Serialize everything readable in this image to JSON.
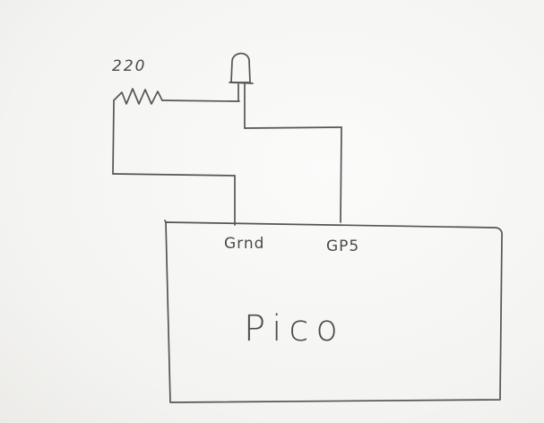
{
  "components": {
    "resistor": {
      "value_label": "220",
      "icon": "resistor-zigzag-icon"
    },
    "led": {
      "icon": "led-icon"
    },
    "board": {
      "label": "Pico"
    }
  },
  "pins": {
    "ground": {
      "label": "Grnd"
    },
    "gpio": {
      "label": "GP5"
    }
  },
  "ink_color": "#4a4a4a",
  "paper_color": "#f3f3f1"
}
